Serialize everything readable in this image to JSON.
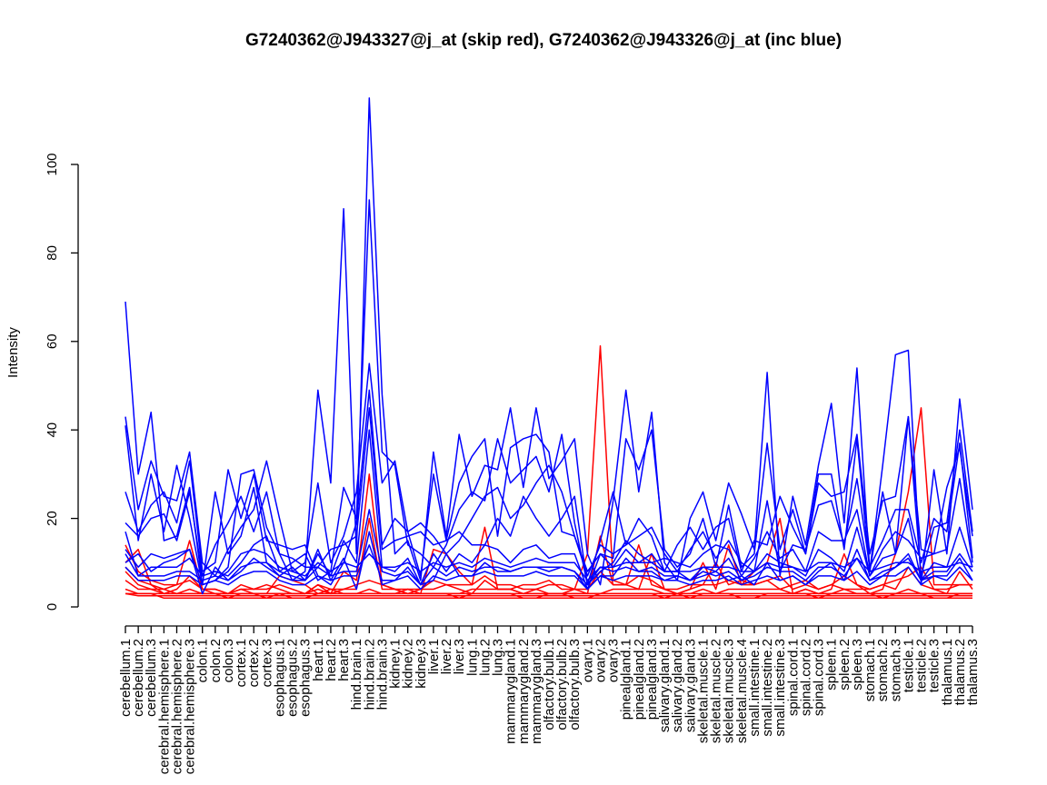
{
  "chart_data": {
    "type": "line",
    "title": "G7240362@J943327@j_at (skip red), G7240362@J943326@j_at (inc blue)",
    "xlabel": "",
    "ylabel": "Intensity",
    "yticks": [
      0,
      20,
      40,
      60,
      80,
      100
    ],
    "ylim": [
      0,
      115
    ],
    "grid": false,
    "categories": [
      "cerebellum.1",
      "cerebellum.2",
      "cerebellum.3",
      "cerebral.hemisphere.1",
      "cerebral.hemisphere.2",
      "cerebral.hemisphere.3",
      "colon.1",
      "colon.2",
      "colon.3",
      "cortex.1",
      "cortex.2",
      "cortex.3",
      "esophagus.1",
      "esophagus.2",
      "esophagus.3",
      "heart.1",
      "heart.2",
      "heart.3",
      "hind.brain.1",
      "hind.brain.2",
      "hind.brain.3",
      "kidney.1",
      "kidney.2",
      "kidney.3",
      "liver.1",
      "liver.2",
      "liver.3",
      "lung.1",
      "lung.2",
      "lung.3",
      "mammarygland.1",
      "mammarygland.2",
      "mammarygland.3",
      "olfactory.bulb.1",
      "olfactory.bulb.2",
      "olfactory.bulb.3",
      "ovary.1",
      "ovary.2",
      "ovary.3",
      "pinealgland.1",
      "pinealgland.2",
      "pinealgland.3",
      "salivary.gland.1",
      "salivary.gland.2",
      "salivary.gland.3",
      "skeletal.muscle.1",
      "skeletal.muscle.2",
      "skeletal.muscle.3",
      "skeletal.muscle.4",
      "small.intestine.1",
      "small.intestine.2",
      "small.intestine.3",
      "spinal.cord.1",
      "spinal.cord.2",
      "spinal.cord.3",
      "spleen.1",
      "spleen.2",
      "spleen.3",
      "stomach.1",
      "stomach.2",
      "stomach.3",
      "testicle.1",
      "testicle.2",
      "testicle.3",
      "thalamus.1",
      "thalamus.2",
      "thalamus.3"
    ],
    "colors": {
      "skip": "#ff0000",
      "inc": "#0000ff"
    },
    "series": [
      {
        "group": "skip",
        "values": [
          14,
          8,
          6,
          5,
          5,
          15,
          4,
          3,
          3,
          4,
          3,
          3,
          7,
          6,
          5,
          3,
          4,
          3,
          3,
          3,
          3,
          3,
          4,
          3,
          13,
          12,
          8,
          5,
          18,
          4,
          4,
          5,
          5,
          6,
          4,
          4,
          12,
          59,
          6,
          5,
          14,
          5,
          4,
          3,
          4,
          10,
          4,
          14,
          5,
          8,
          10,
          20,
          3,
          4,
          3,
          4,
          12,
          5,
          3,
          4,
          12,
          26,
          45,
          5,
          5,
          5,
          5
        ]
      },
      {
        "group": "skip",
        "values": [
          10,
          13,
          5,
          3,
          4,
          7,
          4,
          4,
          3,
          5,
          4,
          5,
          4,
          3,
          3,
          5,
          3,
          8,
          6,
          30,
          5,
          4,
          3,
          4,
          4,
          5,
          4,
          3,
          6,
          4,
          4,
          3,
          4,
          3,
          3,
          4,
          3,
          16,
          5,
          5,
          4,
          12,
          4,
          3,
          4,
          5,
          10,
          5,
          6,
          5,
          6,
          4,
          5,
          6,
          4,
          5,
          4,
          4,
          4,
          5,
          4,
          9,
          5,
          4,
          3,
          8,
          4
        ]
      },
      {
        "group": "skip",
        "values": [
          8,
          5,
          4,
          4,
          3,
          3,
          3,
          3,
          3,
          3,
          3,
          3,
          3,
          3,
          3,
          4,
          3,
          4,
          4,
          20,
          4,
          4,
          3,
          3,
          3,
          3,
          3,
          4,
          4,
          4,
          4,
          3,
          3,
          3,
          3,
          3,
          3,
          3,
          4,
          4,
          4,
          4,
          3,
          3,
          3,
          4,
          3,
          4,
          4,
          4,
          4,
          4,
          3,
          4,
          3,
          3,
          4,
          3,
          3,
          3,
          3,
          4,
          3,
          3,
          3,
          3,
          3
        ]
      },
      {
        "group": "skip",
        "values": [
          3,
          3,
          3,
          3,
          3,
          3,
          3,
          3,
          3,
          3,
          3,
          3,
          3,
          3,
          3,
          3,
          3,
          3,
          3,
          3,
          3,
          3,
          3,
          3,
          3,
          3,
          3,
          3,
          3,
          3,
          3,
          3,
          3,
          3,
          3,
          3,
          3,
          3,
          3,
          3,
          3,
          3,
          3,
          3,
          3,
          3,
          3,
          3,
          3,
          3,
          3,
          3,
          3,
          3,
          3,
          3,
          3,
          3,
          3,
          3,
          3,
          3,
          3,
          3,
          3,
          3,
          3
        ]
      },
      {
        "group": "skip",
        "values": [
          3,
          2.5,
          2.5,
          2.5,
          2.5,
          2.5,
          2.5,
          2.5,
          2.5,
          2.5,
          2.5,
          2.5,
          2.5,
          2.5,
          2.5,
          2.5,
          2.5,
          2.5,
          2.5,
          2.5,
          2.5,
          2.5,
          2.5,
          2.5,
          2.5,
          2.5,
          2.5,
          2.5,
          2.5,
          2.5,
          2.5,
          2.5,
          2.5,
          2.5,
          2.5,
          2.5,
          2.5,
          2.5,
          2.5,
          2.5,
          2.5,
          2.5,
          2.5,
          2.5,
          2.5,
          2.5,
          2.5,
          2.5,
          2.5,
          2.5,
          2.5,
          2.5,
          2.5,
          2.5,
          2.5,
          2.5,
          2.5,
          2.5,
          2.5,
          2.5,
          2.5,
          2.5,
          2.5,
          2.5,
          2.5,
          2.5,
          2.5
        ]
      },
      {
        "group": "skip",
        "values": [
          6,
          4,
          4,
          3,
          3,
          4,
          3,
          3,
          2,
          3,
          3,
          2,
          3,
          2,
          2,
          3,
          3,
          3,
          3,
          4,
          3,
          3,
          3,
          3,
          3,
          3,
          2,
          3,
          3,
          3,
          3,
          2,
          2,
          3,
          3,
          2,
          2,
          3,
          3,
          3,
          3,
          3,
          2,
          3,
          2,
          3,
          3,
          3,
          2,
          2,
          3,
          3,
          3,
          3,
          2,
          3,
          3,
          3,
          3,
          2,
          3,
          3,
          3,
          2,
          2,
          3,
          3
        ]
      },
      {
        "group": "skip",
        "values": [
          9,
          6,
          5,
          4,
          5,
          6,
          4,
          4,
          3,
          4,
          4,
          4,
          5,
          4,
          3,
          5,
          4,
          4,
          5,
          6,
          5,
          4,
          4,
          4,
          6,
          5,
          5,
          5,
          7,
          5,
          5,
          4,
          4,
          5,
          5,
          4,
          4,
          8,
          5,
          5,
          7,
          6,
          4,
          4,
          5,
          5,
          5,
          6,
          5,
          5,
          6,
          7,
          4,
          5,
          4,
          5,
          7,
          5,
          4,
          5,
          6,
          7,
          9,
          4,
          4,
          5,
          5
        ]
      },
      {
        "group": "skip",
        "values": [
          4,
          3,
          3,
          2,
          2,
          2,
          2,
          2,
          2,
          2,
          2,
          2,
          2,
          2,
          2,
          2,
          2,
          2,
          2,
          2,
          2,
          2,
          2,
          2,
          2,
          2,
          2,
          2,
          2,
          2,
          2,
          2,
          2,
          2,
          2,
          2,
          2,
          2,
          2,
          2,
          2,
          2,
          2,
          2,
          2,
          2,
          2,
          2,
          2,
          2,
          2,
          2,
          2,
          2,
          2,
          2,
          2,
          2,
          2,
          2,
          2,
          2,
          2,
          2,
          2,
          2,
          2
        ]
      },
      {
        "group": "inc",
        "values": [
          69,
          30,
          44,
          15,
          16,
          27,
          5,
          6,
          9,
          30,
          31,
          18,
          12,
          6,
          8,
          49,
          28,
          90,
          12,
          115,
          48,
          12,
          15,
          6,
          35,
          16,
          39,
          25,
          32,
          31,
          45,
          27,
          45,
          29,
          33,
          38,
          12,
          5,
          24,
          49,
          26,
          44,
          10,
          6,
          20,
          26,
          15,
          28,
          21,
          13,
          53,
          7,
          25,
          14,
          32,
          46,
          19,
          54,
          8,
          32,
          57,
          58,
          5,
          31,
          12,
          47,
          22
        ]
      },
      {
        "group": "inc",
        "values": [
          43,
          22,
          33,
          25,
          24,
          35,
          10,
          7,
          13,
          18,
          22,
          33,
          20,
          8,
          10,
          28,
          10,
          16,
          26,
          55,
          28,
          33,
          17,
          7,
          30,
          15,
          28,
          34,
          38,
          16,
          36,
          38,
          39,
          35,
          17,
          16,
          8,
          12,
          11,
          38,
          31,
          40,
          13,
          9,
          12,
          20,
          9,
          23,
          9,
          12,
          37,
          13,
          22,
          12,
          28,
          25,
          26,
          39,
          12,
          24,
          25,
          43,
          13,
          12,
          27,
          36,
          16
        ]
      },
      {
        "group": "inc",
        "values": [
          41,
          15,
          30,
          17,
          32,
          20,
          5,
          26,
          12,
          16,
          27,
          10,
          8,
          10,
          12,
          6,
          8,
          27,
          20,
          92,
          35,
          32,
          14,
          12,
          9,
          14,
          22,
          26,
          24,
          38,
          28,
          31,
          34,
          26,
          39,
          19,
          5,
          15,
          26,
          14,
          20,
          16,
          8,
          14,
          18,
          13,
          18,
          20,
          8,
          15,
          14,
          25,
          18,
          12,
          30,
          30,
          13,
          38,
          8,
          26,
          12,
          43,
          7,
          18,
          19,
          40,
          17
        ]
      },
      {
        "group": "inc",
        "values": [
          26,
          17,
          23,
          26,
          19,
          33,
          8,
          10,
          31,
          20,
          30,
          15,
          14,
          13,
          14,
          7,
          5,
          10,
          19,
          49,
          14,
          20,
          17,
          19,
          16,
          12,
          15,
          20,
          25,
          27,
          20,
          23,
          28,
          32,
          26,
          16,
          7,
          14,
          12,
          14,
          16,
          18,
          12,
          8,
          13,
          17,
          11,
          15,
          10,
          8,
          24,
          8,
          14,
          13,
          23,
          24,
          14,
          29,
          9,
          15,
          22,
          22,
          10,
          20,
          17,
          37,
          11
        ]
      },
      {
        "group": "inc",
        "values": [
          19,
          16,
          20,
          21,
          15,
          26,
          7,
          14,
          19,
          25,
          17,
          26,
          12,
          11,
          9,
          9,
          13,
          14,
          16,
          45,
          13,
          15,
          16,
          17,
          14,
          15,
          17,
          14,
          14,
          20,
          16,
          25,
          20,
          16,
          20,
          25,
          5,
          8,
          10,
          15,
          12,
          10,
          11,
          10,
          9,
          12,
          14,
          13,
          7,
          11,
          17,
          11,
          13,
          8,
          17,
          15,
          15,
          22,
          7,
          13,
          17,
          15,
          11,
          12,
          13,
          29,
          10
        ]
      },
      {
        "group": "inc",
        "values": [
          17,
          7,
          9,
          9,
          9,
          11,
          7,
          8,
          7,
          10,
          14,
          16,
          8,
          7,
          6,
          12,
          7,
          15,
          10,
          40,
          9,
          8,
          11,
          5,
          12,
          8,
          12,
          10,
          14,
          13,
          10,
          13,
          14,
          11,
          12,
          12,
          4,
          12,
          9,
          13,
          10,
          12,
          8,
          8,
          6,
          9,
          8,
          11,
          6,
          8,
          12,
          10,
          9,
          7,
          13,
          11,
          8,
          18,
          7,
          11,
          12,
          20,
          6,
          10,
          9,
          18,
          9
        ]
      },
      {
        "group": "inc",
        "values": [
          12,
          7,
          7,
          7,
          8,
          8,
          6,
          7,
          6,
          9,
          10,
          10,
          7,
          6,
          6,
          9,
          7,
          8,
          8,
          22,
          8,
          7,
          8,
          5,
          9,
          7,
          9,
          8,
          9,
          9,
          8,
          9,
          9,
          9,
          9,
          8,
          5,
          9,
          8,
          9,
          8,
          9,
          7,
          7,
          6,
          8,
          7,
          8,
          6,
          7,
          9,
          8,
          8,
          6,
          9,
          9,
          7,
          11,
          6,
          8,
          9,
          12,
          6,
          8,
          8,
          12,
          8
        ]
      },
      {
        "group": "inc",
        "values": [
          9,
          6,
          6,
          6,
          7,
          7,
          5,
          6,
          5,
          7,
          8,
          8,
          6,
          5,
          5,
          7,
          6,
          7,
          7,
          14,
          6,
          6,
          7,
          4,
          7,
          6,
          7,
          7,
          8,
          7,
          7,
          7,
          8,
          7,
          7,
          7,
          4,
          7,
          6,
          7,
          7,
          7,
          6,
          6,
          5,
          6,
          6,
          7,
          5,
          6,
          7,
          6,
          7,
          5,
          7,
          7,
          6,
          8,
          5,
          7,
          7,
          9,
          5,
          7,
          6,
          9,
          6
        ]
      },
      {
        "group": "inc",
        "values": [
          13,
          9,
          12,
          11,
          12,
          13,
          5,
          6,
          8,
          12,
          13,
          12,
          9,
          8,
          7,
          10,
          8,
          10,
          9,
          12,
          9,
          9,
          10,
          8,
          10,
          9,
          10,
          9,
          11,
          10,
          9,
          10,
          11,
          10,
          10,
          10,
          6,
          9,
          9,
          10,
          10,
          10,
          8,
          8,
          8,
          9,
          9,
          9,
          8,
          8,
          10,
          9,
          9,
          8,
          10,
          10,
          9,
          11,
          8,
          9,
          10,
          10,
          8,
          9,
          9,
          10,
          9
        ]
      },
      {
        "group": "inc",
        "values": [
          10,
          12,
          8,
          10,
          11,
          13,
          3,
          9,
          6,
          8,
          11,
          9,
          7,
          9,
          6,
          13,
          6,
          11,
          4,
          17,
          5,
          6,
          9,
          5,
          6,
          12,
          7,
          7,
          10,
          8,
          8,
          9,
          9,
          8,
          9,
          8,
          4,
          7,
          7,
          11,
          8,
          8,
          6,
          7,
          6,
          7,
          8,
          6,
          7,
          5,
          10,
          6,
          7,
          5,
          8,
          10,
          6,
          13,
          6,
          7,
          9,
          11,
          6,
          7,
          7,
          11,
          6
        ]
      }
    ]
  }
}
